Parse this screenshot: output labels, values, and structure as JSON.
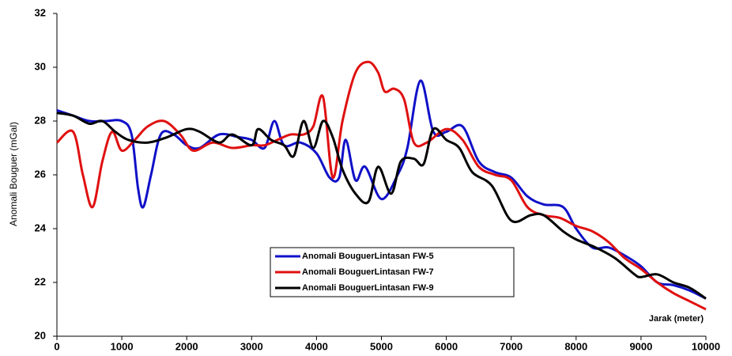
{
  "chart_data": {
    "type": "line",
    "x_label": "Jarak (meter)",
    "y_label": "Anomali Bouguer (mGal)",
    "xlim": [
      0,
      10000
    ],
    "xticks": [
      0,
      1000,
      2000,
      3000,
      4000,
      5000,
      6000,
      7000,
      8000,
      9000,
      10000
    ],
    "ylim": [
      20,
      32
    ],
    "yticks": [
      20,
      22,
      24,
      26,
      28,
      30,
      32
    ],
    "grid": false,
    "legend": "bottom-center",
    "series": [
      {
        "name": "Anomali BouguerLintasan FW-5",
        "color": "#1010c8",
        "x": [
          0,
          250,
          500,
          750,
          1000,
          1150,
          1250,
          1330,
          1450,
          1600,
          1800,
          2000,
          2200,
          2500,
          2800,
          3000,
          3200,
          3350,
          3500,
          3750,
          4000,
          4200,
          4350,
          4450,
          4600,
          4750,
          5000,
          5250,
          5400,
          5600,
          5800,
          6000,
          6250,
          6500,
          6750,
          7000,
          7250,
          7500,
          7800,
          8000,
          8250,
          8500,
          8750,
          9000,
          9250,
          9500,
          9750,
          10000
        ],
        "values": [
          28.4,
          28.2,
          28.0,
          28.0,
          28.0,
          27.5,
          25.5,
          24.8,
          26.0,
          27.5,
          27.5,
          27.1,
          27.0,
          27.5,
          27.4,
          27.3,
          27.0,
          28.0,
          27.1,
          27.2,
          26.8,
          25.9,
          25.9,
          27.3,
          25.8,
          26.3,
          25.1,
          26.0,
          27.0,
          29.5,
          27.6,
          27.6,
          27.8,
          26.5,
          26.1,
          25.9,
          25.2,
          24.9,
          24.8,
          24.0,
          23.3,
          23.3,
          23.0,
          22.6,
          22.0,
          21.9,
          21.7,
          21.4
        ]
      },
      {
        "name": "Anomali BouguerLintasan FW-7",
        "color": "#e01010",
        "x": [
          0,
          250,
          400,
          550,
          700,
          850,
          1000,
          1200,
          1400,
          1650,
          1900,
          2100,
          2400,
          2700,
          3000,
          3200,
          3400,
          3600,
          3800,
          3950,
          4100,
          4250,
          4400,
          4600,
          4800,
          4950,
          5050,
          5200,
          5350,
          5500,
          5700,
          6000,
          6250,
          6500,
          6750,
          7000,
          7250,
          7500,
          7750,
          8000,
          8250,
          8500,
          8750,
          9000,
          9250,
          9500,
          9750,
          10000
        ],
        "values": [
          27.2,
          27.6,
          26.0,
          24.8,
          26.5,
          27.6,
          26.9,
          27.3,
          27.8,
          28.0,
          27.5,
          26.9,
          27.2,
          27.0,
          27.1,
          27.1,
          27.3,
          27.5,
          27.5,
          27.8,
          28.9,
          25.9,
          28.0,
          29.8,
          30.2,
          29.8,
          29.1,
          29.2,
          28.8,
          27.2,
          27.2,
          27.7,
          27.3,
          26.3,
          26.0,
          25.8,
          24.8,
          24.5,
          24.4,
          24.1,
          23.9,
          23.5,
          22.9,
          22.5,
          22.0,
          21.6,
          21.3,
          21.0
        ]
      },
      {
        "name": "Anomali BouguerLintasan FW-9",
        "color": "#000000",
        "x": [
          0,
          250,
          500,
          700,
          900,
          1100,
          1400,
          1700,
          2000,
          2200,
          2500,
          2700,
          3000,
          3100,
          3300,
          3500,
          3650,
          3800,
          3950,
          4100,
          4250,
          4400,
          4600,
          4800,
          4950,
          5150,
          5300,
          5500,
          5650,
          5800,
          6000,
          6200,
          6400,
          6700,
          7000,
          7300,
          7500,
          7800,
          8000,
          8300,
          8600,
          8900,
          9000,
          9250,
          9500,
          9750,
          10000
        ],
        "values": [
          28.3,
          28.2,
          27.9,
          28.0,
          27.6,
          27.3,
          27.2,
          27.4,
          27.7,
          27.6,
          27.2,
          27.5,
          27.1,
          27.7,
          27.3,
          27.1,
          26.7,
          28.0,
          27.0,
          28.0,
          27.4,
          26.2,
          25.3,
          25.0,
          26.3,
          25.3,
          26.5,
          26.6,
          26.4,
          27.7,
          27.3,
          27.0,
          26.1,
          25.6,
          24.3,
          24.5,
          24.5,
          23.9,
          23.6,
          23.3,
          22.9,
          22.3,
          22.2,
          22.3,
          22.0,
          21.8,
          21.4
        ]
      }
    ]
  }
}
